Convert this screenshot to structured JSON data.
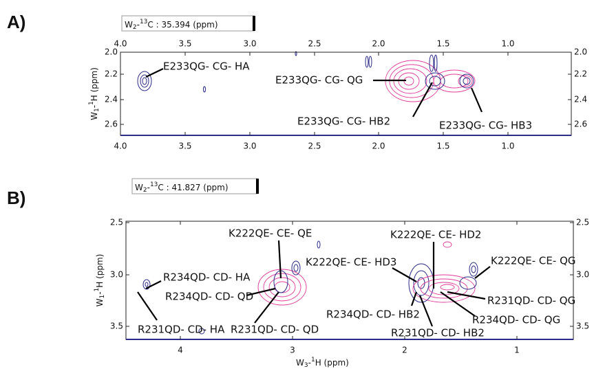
{
  "panels": [
    {
      "label": "A)",
      "header": {
        "w": "W",
        "sub": "2",
        "dash": "-",
        "sup": "13",
        "rest": "C :  35.394  (ppm)"
      },
      "x_ticks": [
        "4.0",
        "3.5",
        "3.0",
        "2.5",
        "2.0",
        "1.5",
        "1.0"
      ],
      "y_ticks": [
        "2.0",
        "2.2",
        "2.4",
        "2.6"
      ],
      "y_title": {
        "w": "W",
        "sub": "1",
        "dash": "-",
        "sup": "1",
        "rest": "H  (ppm)"
      },
      "annotations": [
        "E233QG- CG- HA",
        "E233QG- CG- QG",
        "E233QG- CG- HB2",
        "E233QG- CG- HB3"
      ]
    },
    {
      "label": "B)",
      "header": {
        "w": "W",
        "sub": "2",
        "dash": "-",
        "sup": "13",
        "rest": "C :  41.827  (ppm)"
      },
      "x_ticks": [
        "4",
        "3",
        "2",
        "1"
      ],
      "y_ticks": [
        "2.5",
        "3.0",
        "3.5"
      ],
      "y_title": {
        "w": "W",
        "sub": "1",
        "dash": "-",
        "sup": "1",
        "rest": "H  (ppm)"
      },
      "x_title": {
        "w": "W",
        "sub": "3",
        "dash": "-",
        "sup": "1",
        "rest": "H  (ppm)"
      },
      "annotations": [
        "K222QE- CE- QE",
        "K222QE- CE- HD3",
        "R234QD- CD- HA",
        "R234QD- CD- QD",
        "R231QD- CD- HA",
        "R231QD- CD- QD",
        "K222QE- CE- HD2",
        "K222QE- CE- QG",
        "R234QD- CD- HB2",
        "R231QD- CD- HB2",
        "R231QD- CD- QG",
        "R234QD- CD- QG"
      ]
    }
  ]
}
